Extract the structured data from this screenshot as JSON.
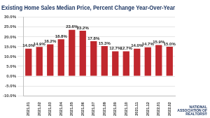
{
  "chart_data": {
    "type": "bar",
    "title": "Existing Home Sales Median Price, Percent Change Year-Over-Year",
    "categories": [
      "2021.01",
      "2021.02",
      "2021.03",
      "2021.04",
      "2021.05",
      "2021.06",
      "2021.07",
      "2021.08",
      "2021.09",
      "2021.10",
      "2021.11",
      "2021.12",
      "2022.01",
      "2022.02"
    ],
    "values": [
      14.0,
      14.9,
      16.2,
      18.8,
      23.6,
      23.2,
      17.8,
      15.3,
      12.7,
      12.7,
      14.0,
      14.7,
      15.9,
      15.0
    ],
    "value_labels": [
      "14.0%",
      "14.9%",
      "16.2%",
      "18.8%",
      "23.6%",
      "23.2%",
      "17.8%",
      "15.3%",
      "12.7%",
      "12.7%",
      "14.0%",
      "14.7%",
      "15.9%",
      "15.0%"
    ],
    "color": "#c0272d",
    "ylim": [
      -10,
      30
    ],
    "yticks": [
      {
        "value": -10,
        "label": "-10.0%"
      },
      {
        "value": -5,
        "label": "-5.0%"
      },
      {
        "value": 0,
        "label": "0.0%"
      },
      {
        "value": 5,
        "label": "5.0%"
      },
      {
        "value": 10,
        "label": "10.0%"
      },
      {
        "value": 15,
        "label": "15.0%"
      },
      {
        "value": 20,
        "label": "20.0%"
      },
      {
        "value": 25,
        "label": "25.0%"
      },
      {
        "value": 30,
        "label": "30.0%"
      }
    ],
    "grid": true,
    "data_labels": true,
    "annotations": [
      "NATIONAL ASSOCIATION OF REALTORS®"
    ]
  }
}
